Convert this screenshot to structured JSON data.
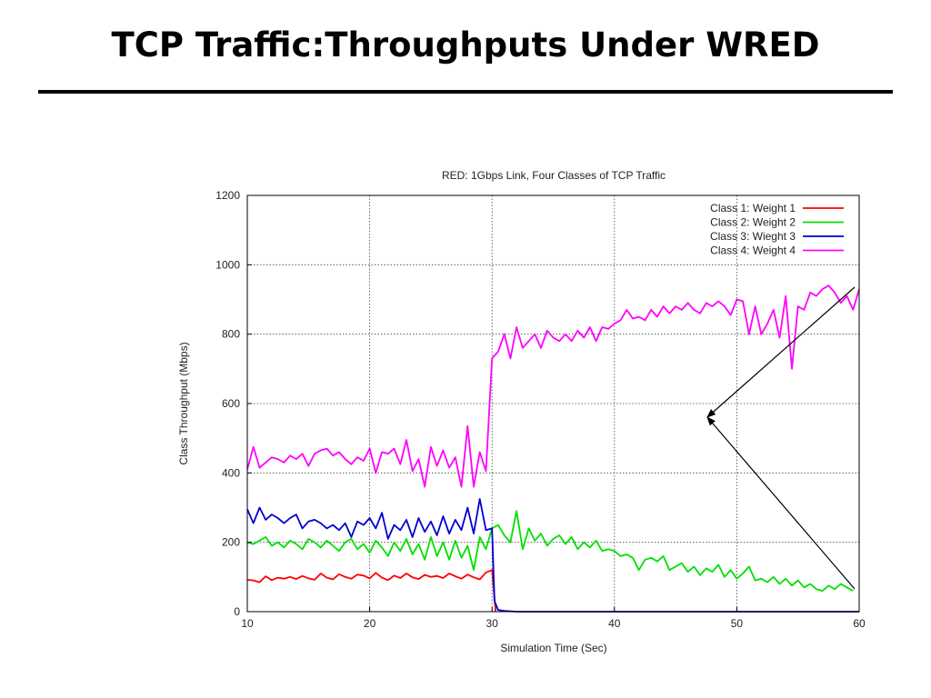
{
  "slide_title": "TCP Traffic:Throughputs Under WRED",
  "chart_data": {
    "type": "line",
    "title": "RED: 1Gbps Link, Four Classes of TCP Traffic",
    "xlabel": "Simulation Time (Sec)",
    "ylabel": "Class Throughput (Mbps)",
    "xlim": [
      10,
      60
    ],
    "ylim": [
      0,
      1200
    ],
    "xticks": [
      10,
      20,
      30,
      40,
      50,
      60
    ],
    "yticks": [
      0,
      200,
      400,
      600,
      800,
      1000,
      1200
    ],
    "grid": true,
    "legend_position": "top-right",
    "series": [
      {
        "name": "Class 1: Weight 1",
        "color": "#ff0000",
        "x": [
          10.0,
          10.5,
          11.0,
          11.5,
          12.0,
          12.5,
          13.0,
          13.5,
          14.0,
          14.5,
          15.0,
          15.5,
          16.0,
          16.5,
          17.0,
          17.5,
          18.0,
          18.5,
          19.0,
          19.5,
          20.0,
          20.5,
          21.0,
          21.5,
          22.0,
          22.5,
          23.0,
          23.5,
          24.0,
          24.5,
          25.0,
          25.5,
          26.0,
          26.5,
          27.0,
          27.5,
          28.0,
          28.5,
          29.0,
          29.5,
          30.0,
          30.3
        ],
        "y": [
          92,
          90,
          85,
          102,
          91,
          98,
          95,
          100,
          94,
          103,
          96,
          92,
          110,
          98,
          93,
          108,
          100,
          95,
          107,
          104,
          96,
          112,
          98,
          91,
          104,
          97,
          110,
          99,
          94,
          106,
          100,
          103,
          97,
          110,
          102,
          95,
          107,
          99,
          93,
          113,
          120,
          0
        ]
      },
      {
        "name": "Class 2: Weight 2",
        "color": "#00e000",
        "x": [
          10.0,
          10.5,
          11.0,
          11.5,
          12.0,
          12.5,
          13.0,
          13.5,
          14.0,
          14.5,
          15.0,
          15.5,
          16.0,
          16.5,
          17.0,
          17.5,
          18.0,
          18.5,
          19.0,
          19.5,
          20.0,
          20.5,
          21.0,
          21.5,
          22.0,
          22.5,
          23.0,
          23.5,
          24.0,
          24.5,
          25.0,
          25.5,
          26.0,
          26.5,
          27.0,
          27.5,
          28.0,
          28.5,
          29.0,
          29.5,
          30.0,
          30.5,
          31.0,
          31.5,
          32.0,
          32.5,
          33.0,
          33.5,
          34.0,
          34.5,
          35.0,
          35.5,
          36.0,
          36.5,
          37.0,
          37.5,
          38.0,
          38.5,
          39.0,
          39.5,
          40.0,
          40.5,
          41.0,
          41.5,
          42.0,
          42.5,
          43.0,
          43.5,
          44.0,
          44.5,
          45.0,
          45.5,
          46.0,
          46.5,
          47.0,
          47.5,
          48.0,
          48.5,
          49.0,
          49.5,
          50.0,
          50.5,
          51.0,
          51.5,
          52.0,
          52.5,
          53.0,
          53.5,
          54.0,
          54.5,
          55.0,
          55.5,
          56.0,
          56.5,
          57.0,
          57.5,
          58.0,
          58.5,
          59.0,
          59.5
        ],
        "y": [
          200,
          195,
          205,
          215,
          190,
          200,
          185,
          205,
          195,
          180,
          210,
          200,
          185,
          205,
          190,
          175,
          200,
          210,
          180,
          195,
          170,
          205,
          185,
          160,
          200,
          175,
          210,
          165,
          195,
          150,
          215,
          160,
          200,
          150,
          205,
          155,
          190,
          120,
          215,
          180,
          240,
          250,
          220,
          200,
          290,
          180,
          240,
          205,
          225,
          190,
          210,
          220,
          195,
          215,
          180,
          200,
          185,
          205,
          175,
          180,
          175,
          160,
          165,
          155,
          120,
          150,
          155,
          145,
          160,
          120,
          130,
          140,
          115,
          130,
          105,
          125,
          115,
          135,
          100,
          120,
          95,
          110,
          130,
          90,
          95,
          85,
          100,
          80,
          95,
          75,
          90,
          70,
          80,
          65,
          60,
          75,
          65,
          80,
          70,
          60
        ]
      },
      {
        "name": "Class 3: Wieght 3",
        "color": "#0000d0",
        "x": [
          10.0,
          10.5,
          11.0,
          11.5,
          12.0,
          12.5,
          13.0,
          13.5,
          14.0,
          14.5,
          15.0,
          15.5,
          16.0,
          16.5,
          17.0,
          17.5,
          18.0,
          18.5,
          19.0,
          19.5,
          20.0,
          20.5,
          21.0,
          21.5,
          22.0,
          22.5,
          23.0,
          23.5,
          24.0,
          24.5,
          25.0,
          25.5,
          26.0,
          26.5,
          27.0,
          27.5,
          28.0,
          28.5,
          29.0,
          29.5,
          30.0,
          30.2,
          30.5,
          31.0,
          32.0,
          35.0,
          40.0,
          45.0,
          50.0,
          55.0,
          60.0
        ],
        "y": [
          295,
          255,
          300,
          265,
          280,
          270,
          255,
          270,
          280,
          240,
          260,
          265,
          255,
          240,
          250,
          235,
          255,
          215,
          260,
          250,
          270,
          240,
          285,
          210,
          250,
          235,
          265,
          215,
          270,
          230,
          260,
          220,
          275,
          225,
          265,
          235,
          300,
          225,
          325,
          235,
          240,
          30,
          5,
          2,
          0,
          0,
          0,
          0,
          0,
          0,
          0
        ]
      },
      {
        "name": "Class 4: Weight 4",
        "color": "#ff00ff",
        "x": [
          10.0,
          10.5,
          11.0,
          11.5,
          12.0,
          12.5,
          13.0,
          13.5,
          14.0,
          14.5,
          15.0,
          15.5,
          16.0,
          16.5,
          17.0,
          17.5,
          18.0,
          18.5,
          19.0,
          19.5,
          20.0,
          20.5,
          21.0,
          21.5,
          22.0,
          22.5,
          23.0,
          23.5,
          24.0,
          24.5,
          25.0,
          25.5,
          26.0,
          26.5,
          27.0,
          27.5,
          28.0,
          28.5,
          29.0,
          29.5,
          30.0,
          30.5,
          31.0,
          31.5,
          32.0,
          32.5,
          33.0,
          33.5,
          34.0,
          34.5,
          35.0,
          35.5,
          36.0,
          36.5,
          37.0,
          37.5,
          38.0,
          38.5,
          39.0,
          39.5,
          40.0,
          40.5,
          41.0,
          41.5,
          42.0,
          42.5,
          43.0,
          43.5,
          44.0,
          44.5,
          45.0,
          45.5,
          46.0,
          46.5,
          47.0,
          47.5,
          48.0,
          48.5,
          49.0,
          49.5,
          50.0,
          50.5,
          51.0,
          51.5,
          52.0,
          52.5,
          53.0,
          53.5,
          54.0,
          54.5,
          55.0,
          55.5,
          56.0,
          56.5,
          57.0,
          57.5,
          58.0,
          58.5,
          59.0,
          59.5,
          60.0
        ],
        "y": [
          410,
          475,
          415,
          430,
          445,
          440,
          430,
          450,
          440,
          455,
          420,
          455,
          465,
          470,
          450,
          460,
          440,
          425,
          445,
          435,
          470,
          400,
          460,
          455,
          470,
          425,
          495,
          405,
          440,
          360,
          475,
          420,
          465,
          415,
          445,
          360,
          535,
          360,
          460,
          405,
          730,
          750,
          800,
          730,
          820,
          760,
          780,
          800,
          760,
          810,
          790,
          780,
          800,
          780,
          810,
          790,
          820,
          780,
          820,
          815,
          830,
          840,
          870,
          845,
          850,
          840,
          870,
          850,
          880,
          860,
          880,
          870,
          890,
          870,
          860,
          890,
          880,
          895,
          880,
          855,
          900,
          895,
          800,
          880,
          800,
          830,
          870,
          790,
          910,
          700,
          880,
          870,
          920,
          910,
          930,
          940,
          920,
          890,
          910,
          870,
          930
        ]
      }
    ]
  }
}
